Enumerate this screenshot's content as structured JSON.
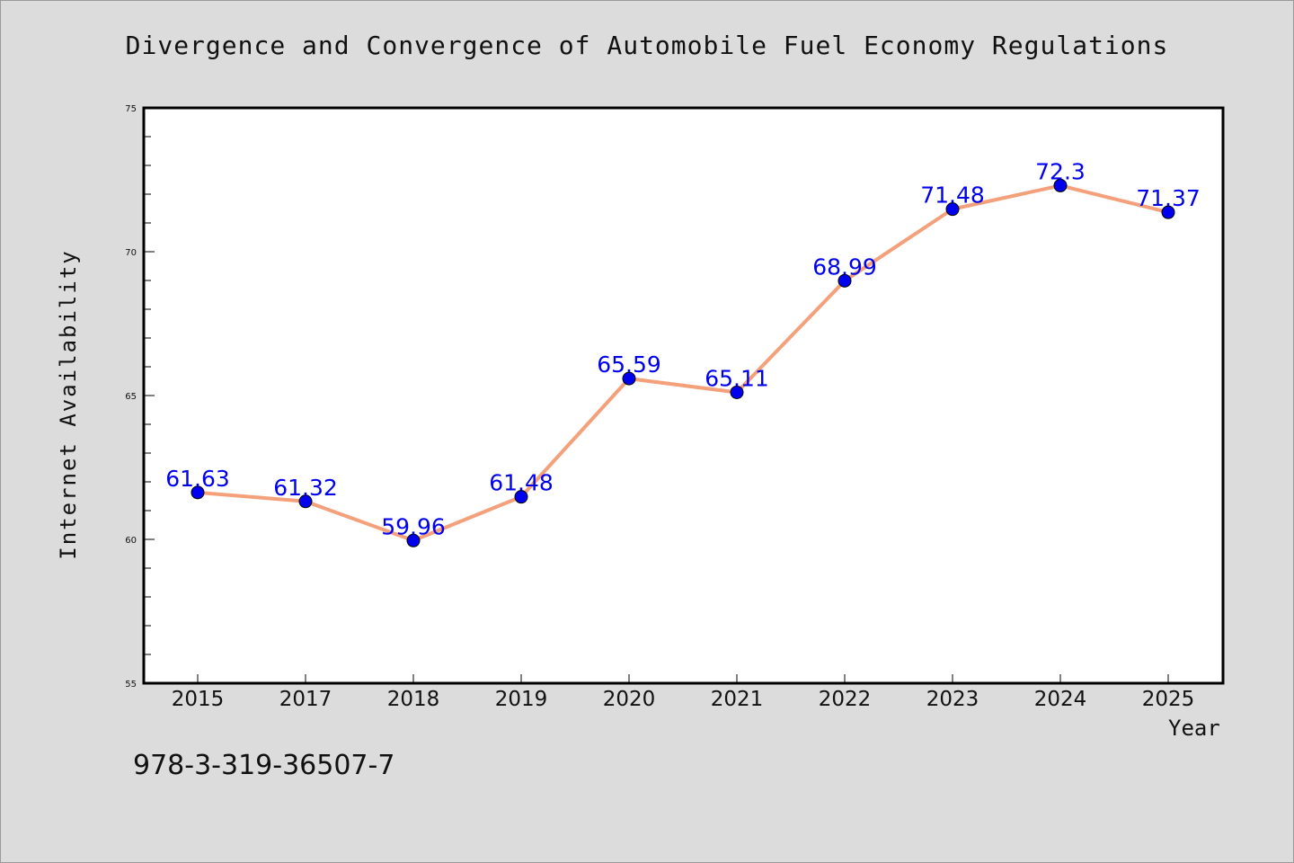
{
  "chart_data": {
    "type": "line",
    "title": "Divergence and Convergence of Automobile Fuel Economy Regulations",
    "xlabel": "Year",
    "ylabel": "Internet Availability",
    "categories": [
      "2015",
      "2017",
      "2018",
      "2019",
      "2020",
      "2021",
      "2022",
      "2023",
      "2024",
      "2025"
    ],
    "series": [
      {
        "values": [
          61.63,
          61.32,
          59.96,
          61.48,
          65.59,
          65.11,
          68.99,
          71.48,
          72.3,
          71.37
        ],
        "labels": [
          "61.63",
          "61.32",
          "59.96",
          "61.48",
          "65.59",
          "65.11",
          "68.99",
          "71.48",
          "72.3",
          "71.37"
        ],
        "line_color": "#f4a07a",
        "marker_color": "#0000ee"
      }
    ],
    "ylim": [
      55,
      75
    ],
    "yticks": [
      "55",
      "60",
      "65",
      "70",
      "75"
    ],
    "grid": false,
    "legend": "none"
  },
  "footer": {
    "code": "978-3-319-36507-7"
  },
  "colors": {
    "background": "#dcdcdc",
    "plot_area": "#ffffff",
    "line": "#f4a07a",
    "marker": "#0000ee",
    "data_label": "#0000ee"
  }
}
